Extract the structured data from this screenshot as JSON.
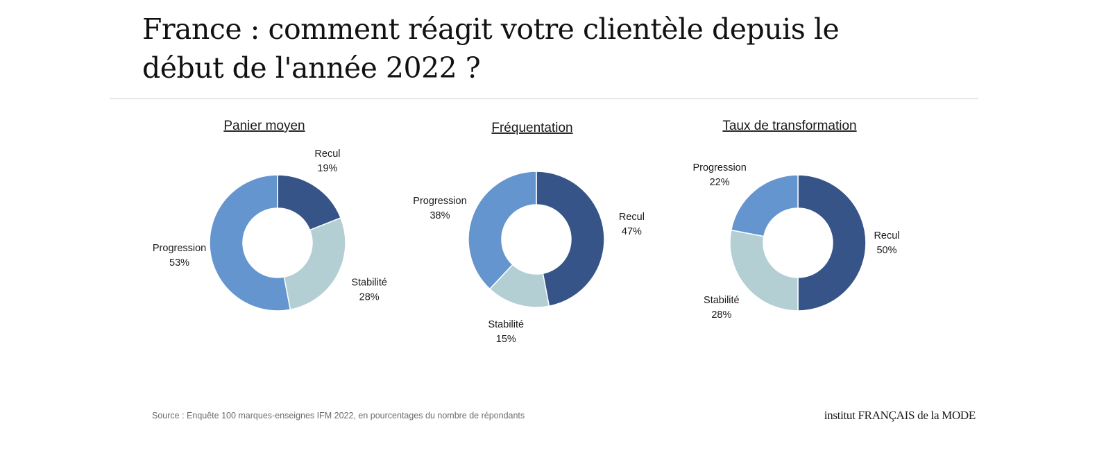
{
  "title": "France : comment réagit votre clientèle depuis le début de l'année 2022 ?",
  "colors": {
    "recul": "#365487",
    "progression": "#6495cf",
    "stabilite": "#b3cfd4"
  },
  "chart_data": [
    {
      "type": "pie",
      "title": "Panier moyen",
      "slices": [
        {
          "label": "Recul",
          "value": 19,
          "value_label": "19%",
          "color": "#365487"
        },
        {
          "label": "Stabilité",
          "value": 28,
          "value_label": "28%",
          "color": "#b3cfd4"
        },
        {
          "label": "Progression",
          "value": 53,
          "value_label": "53%",
          "color": "#6495cf"
        }
      ]
    },
    {
      "type": "pie",
      "title": "Fréquentation",
      "slices": [
        {
          "label": "Recul",
          "value": 47,
          "value_label": "47%",
          "color": "#365487"
        },
        {
          "label": "Stabilité",
          "value": 15,
          "value_label": "15%",
          "color": "#b3cfd4"
        },
        {
          "label": "Progression",
          "value": 38,
          "value_label": "38%",
          "color": "#6495cf"
        }
      ]
    },
    {
      "type": "pie",
      "title": "Taux de transformation",
      "slices": [
        {
          "label": "Recul",
          "value": 50,
          "value_label": "50%",
          "color": "#365487"
        },
        {
          "label": "Stabilité",
          "value": 28,
          "value_label": "28%",
          "color": "#b3cfd4"
        },
        {
          "label": "Progression",
          "value": 22,
          "value_label": "22%",
          "color": "#6495cf"
        }
      ]
    }
  ],
  "source": "Source : Enquête 100 marques-enseignes IFM 2022, en pourcentages du nombre de répondants",
  "logo": "institut FRANÇAIS de la MODE"
}
